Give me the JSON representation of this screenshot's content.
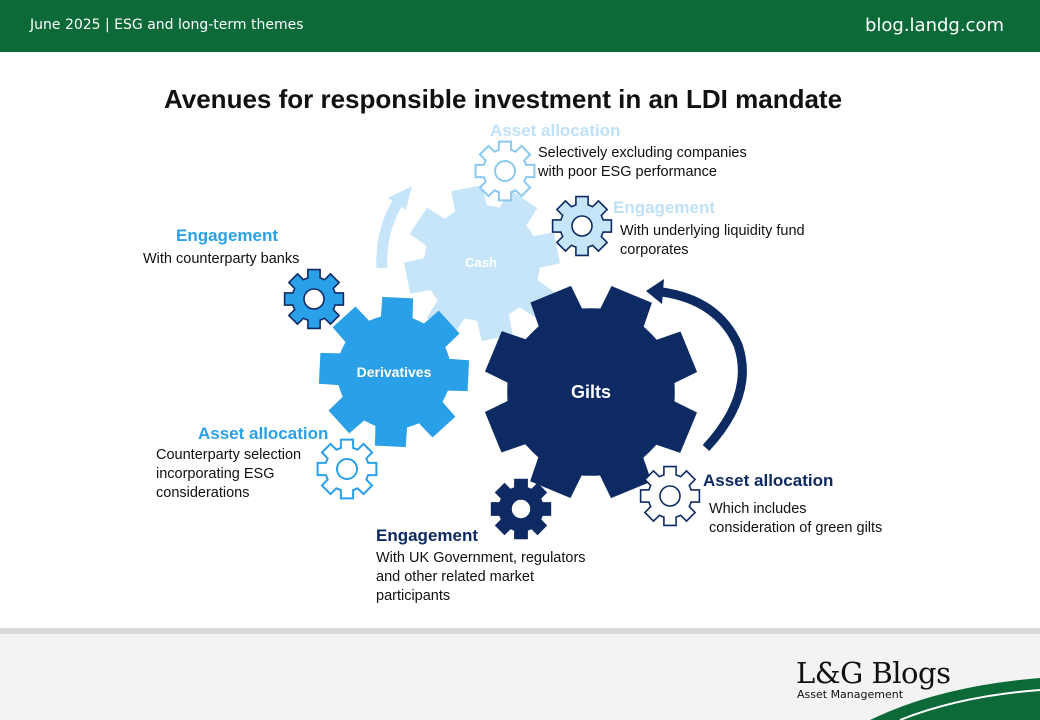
{
  "header": {
    "left_text": "June 2025 |  ESG and long-term themes",
    "right_text": "blog.landg.com"
  },
  "title": "Avenues for responsible investment in an LDI mandate",
  "gears": {
    "cash": "Cash",
    "derivatives": "Derivatives",
    "gilts": "Gilts"
  },
  "annotations": {
    "cash_asset_allocation": {
      "heading": "Asset allocation",
      "lines": [
        "Selectively excluding companies",
        "with poor ESG performance"
      ]
    },
    "cash_engagement": {
      "heading": "Engagement",
      "lines": [
        "With underlying liquidity fund",
        "corporates"
      ]
    },
    "derivatives_engagement": {
      "heading": "Engagement",
      "lines": [
        "With counterparty banks"
      ]
    },
    "derivatives_asset_allocation": {
      "heading": "Asset allocation",
      "lines": [
        "Counterparty selection",
        "incorporating ESG",
        "considerations"
      ]
    },
    "gilts_engagement": {
      "heading": "Engagement",
      "lines": [
        "With UK Government, regulators",
        "and other related market",
        "participants"
      ]
    },
    "gilts_asset_allocation": {
      "heading": "Asset allocation",
      "lines": [
        "Which includes",
        "consideration of green gilts"
      ]
    }
  },
  "colors": {
    "header_green": "#0b6a38",
    "cash": "#c7e5f9",
    "derivatives": "#2aa0e8",
    "gilts": "#0e2a63"
  },
  "footer": {
    "brand": "L&G Blogs",
    "brand_sub": "Asset Management"
  }
}
